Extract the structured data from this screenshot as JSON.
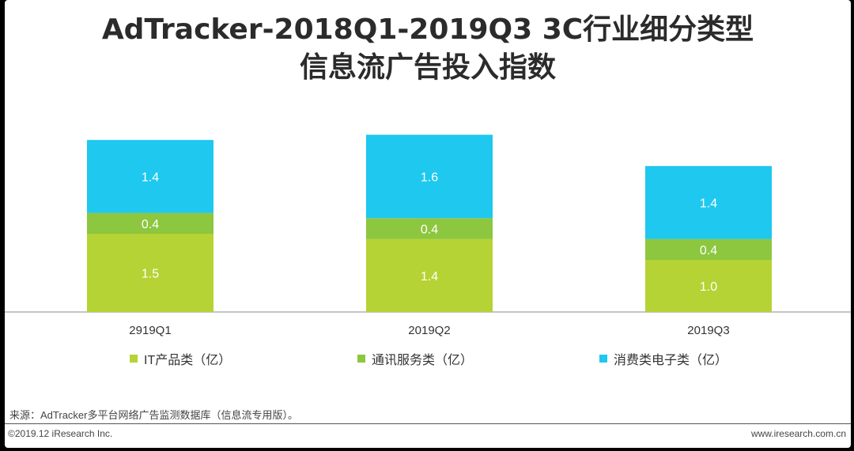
{
  "title_lines": [
    "AdTracker-2018Q1-2019Q3 3C行业细分类型",
    "信息流广告投入指数"
  ],
  "chart_data": {
    "type": "bar",
    "stacked": true,
    "categories": [
      "2919Q1",
      "2019Q2",
      "2019Q3"
    ],
    "series": [
      {
        "name": "IT产品类（亿）",
        "color": "#b5d334",
        "values": [
          1.5,
          1.4,
          1.0
        ],
        "labels": [
          "1.5",
          "1.4",
          "1.0"
        ]
      },
      {
        "name": "通讯服务类（亿）",
        "color": "#8dc63f",
        "values": [
          0.4,
          0.4,
          0.4
        ],
        "labels": [
          "0.4",
          "0.4",
          "0.4"
        ]
      },
      {
        "name": "消费类电子类（亿）",
        "color": "#1ec8ee",
        "values": [
          1.4,
          1.6,
          1.4
        ],
        "labels": [
          "1.4",
          "1.6",
          "1.4"
        ]
      }
    ],
    "legend_position": "bottom",
    "grid": false
  },
  "footer": {
    "source": "来源：AdTracker多平台网络广告监测数据库（信息流专用版）。",
    "copyright": "©2019.12 iResearch Inc.",
    "website": "www.iresearch.com.cn"
  }
}
